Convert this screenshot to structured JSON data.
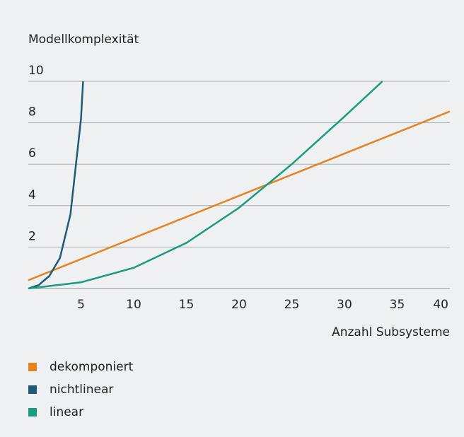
{
  "chart_data": {
    "type": "line",
    "y_label": "Modellkomplexität",
    "x_label": "Anzahl Subsysteme",
    "xlim": [
      0,
      40
    ],
    "xticks": [
      5,
      10,
      15,
      20,
      25,
      30,
      35,
      40
    ],
    "ylim": [
      0,
      10
    ],
    "yticks": [
      2,
      4,
      6,
      8,
      10
    ],
    "grid": true,
    "series": [
      {
        "name": "dekomponiert",
        "color": "#e8821e",
        "x": [
          0,
          40
        ],
        "values": [
          0.4,
          8.55
        ]
      },
      {
        "name": "nichtlinear",
        "color": "#1f5a7a",
        "x": [
          0,
          1,
          2,
          3,
          4,
          5,
          5.2
        ],
        "values": [
          0,
          0.17,
          0.61,
          1.47,
          3.58,
          8.19,
          10
        ]
      },
      {
        "name": "linear",
        "color": "#179c7d",
        "x": [
          0,
          5,
          10,
          15,
          20,
          25,
          30,
          33.6
        ],
        "values": [
          0,
          0.3,
          1.0,
          2.2,
          3.9,
          6.0,
          8.3,
          10
        ]
      }
    ]
  }
}
